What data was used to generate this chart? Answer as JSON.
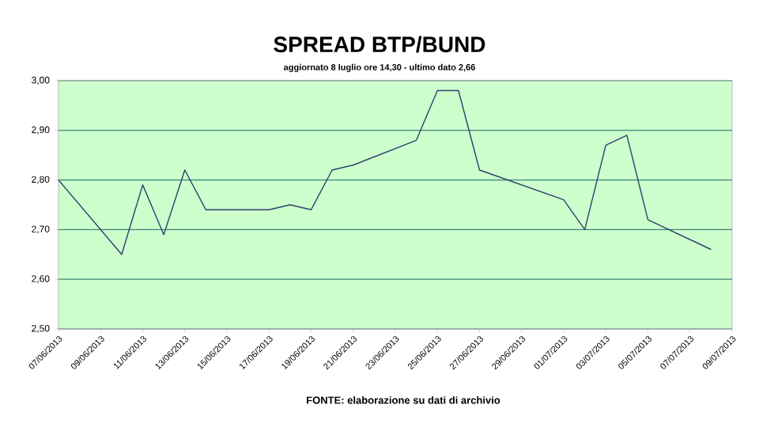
{
  "chart_data": {
    "type": "line",
    "title": "SPREAD BTP/BUND",
    "subtitle": "aggiornato 8 luglio ore 14,30 - ultimo dato 2,66",
    "annotations": [
      "FONTE: elaborazione su dati di archivio"
    ],
    "x": [
      "2013-06-07",
      "2013-06-10",
      "2013-06-11",
      "2013-06-12",
      "2013-06-13",
      "2013-06-14",
      "2013-06-17",
      "2013-06-18",
      "2013-06-19",
      "2013-06-20",
      "2013-06-21",
      "2013-06-24",
      "2013-06-25",
      "2013-06-26",
      "2013-06-27",
      "2013-07-01",
      "2013-07-02",
      "2013-07-03",
      "2013-07-04",
      "2013-07-05",
      "2013-07-08"
    ],
    "series": [
      {
        "color": "#2f3f6f",
        "values": [
          2.8,
          2.65,
          2.79,
          2.69,
          2.82,
          2.74,
          2.74,
          2.75,
          2.74,
          2.82,
          2.83,
          2.88,
          2.98,
          2.98,
          2.82,
          2.76,
          2.7,
          2.87,
          2.89,
          2.72,
          2.66
        ]
      }
    ],
    "xlim": [
      "2013-06-07",
      "2013-07-09"
    ],
    "xticks": [
      {
        "value": "2013-06-07",
        "label": "07/06/2013"
      },
      {
        "value": "2013-06-09",
        "label": "09/06/2013"
      },
      {
        "value": "2013-06-11",
        "label": "11/06/2013"
      },
      {
        "value": "2013-06-13",
        "label": "13/06/2013"
      },
      {
        "value": "2013-06-15",
        "label": "15/06/2013"
      },
      {
        "value": "2013-06-17",
        "label": "17/06/2013"
      },
      {
        "value": "2013-06-19",
        "label": "19/06/2013"
      },
      {
        "value": "2013-06-21",
        "label": "21/06/2013"
      },
      {
        "value": "2013-06-23",
        "label": "23/06/2013"
      },
      {
        "value": "2013-06-25",
        "label": "25/06/2013"
      },
      {
        "value": "2013-06-27",
        "label": "27/06/2013"
      },
      {
        "value": "2013-06-29",
        "label": "29/06/2013"
      },
      {
        "value": "2013-07-01",
        "label": "01/07/2013"
      },
      {
        "value": "2013-07-03",
        "label": "03/07/2013"
      },
      {
        "value": "2013-07-05",
        "label": "05/07/2013"
      },
      {
        "value": "2013-07-07",
        "label": "07/07/2013"
      },
      {
        "value": "2013-07-09",
        "label": "09/07/2013"
      }
    ],
    "ylim": [
      2.5,
      3.0
    ],
    "yticks": [
      {
        "value": 2.5,
        "label": "2,50"
      },
      {
        "value": 2.6,
        "label": "2,60"
      },
      {
        "value": 2.7,
        "label": "2,70"
      },
      {
        "value": 2.8,
        "label": "2,80"
      },
      {
        "value": 2.9,
        "label": "2,90"
      },
      {
        "value": 3.0,
        "label": "3,00"
      }
    ],
    "grid": "y",
    "marker": "none",
    "line_style": "solid"
  }
}
